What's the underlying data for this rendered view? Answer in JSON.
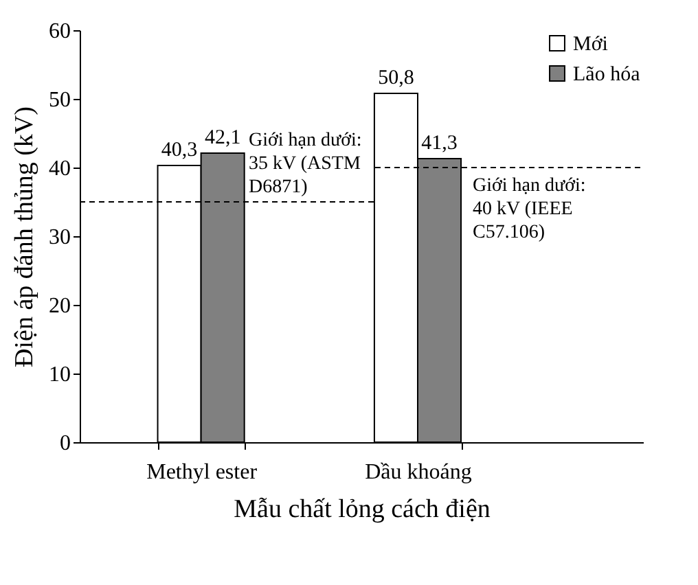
{
  "chart_data": {
    "type": "bar",
    "xlabel": "Mẫu chất lỏng cách điện",
    "ylabel": "Điện áp đánh thủng (kV)",
    "categories": [
      "Methyl ester",
      "Dầu khoáng"
    ],
    "series": [
      {
        "name": "Mới",
        "color": "#ffffff",
        "values": [
          40.3,
          50.8
        ]
      },
      {
        "name": "Lão hóa",
        "color": "#808080",
        "values": [
          42.1,
          41.3
        ]
      }
    ],
    "value_labels": [
      "40,3",
      "50,8",
      "42,1",
      "41,3"
    ],
    "ylim": [
      0,
      60
    ],
    "yticks": [
      0,
      10,
      20,
      30,
      40,
      50,
      60
    ],
    "grid": false,
    "legend": "top right",
    "ref_lines": [
      {
        "axis": "y",
        "value": 35,
        "label": "Giới hạn dưới: 35 kV (ASTM D6871)",
        "color": "#000000",
        "line_style": "dashed"
      },
      {
        "axis": "y",
        "value": 40,
        "label": "Giới hạn dưới: 40 kV (IEEE C57.106)",
        "color": "#000000",
        "line_style": "dashed"
      }
    ]
  }
}
